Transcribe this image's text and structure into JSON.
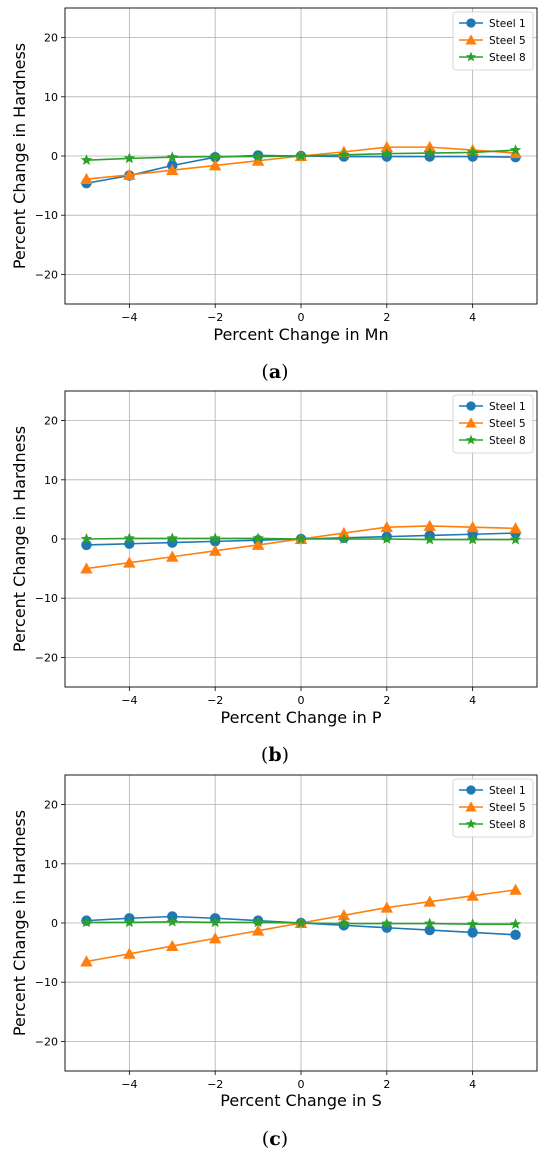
{
  "chart_data": [
    {
      "type": "line",
      "caption": {
        "open": "(",
        "letter": "a",
        "close": ")"
      },
      "xlabel": "Percent Change in Mn",
      "ylabel": "Percent Change in Hardness",
      "xlim": [
        -5.5,
        5.5
      ],
      "ylim": [
        -25,
        25
      ],
      "xticks": [
        -4,
        -2,
        0,
        2,
        4
      ],
      "yticks": [
        -20,
        -10,
        0,
        10,
        20
      ],
      "xtick_labels": [
        "−4",
        "−2",
        "0",
        "2",
        "4"
      ],
      "ytick_labels": [
        "−20",
        "−10",
        "0",
        "10",
        "20"
      ],
      "grid": true,
      "legend_position": "top-right",
      "x": [
        -5,
        -4,
        -3,
        -2,
        -1,
        0,
        1,
        2,
        3,
        4,
        5
      ],
      "series": [
        {
          "name": "Steel 1",
          "color": "#1f77b4",
          "marker": "circle",
          "values": [
            -4.6,
            -3.3,
            -1.6,
            -0.2,
            0.1,
            0.0,
            -0.1,
            -0.1,
            -0.1,
            -0.1,
            -0.2
          ]
        },
        {
          "name": "Steel 5",
          "color": "#ff7f0e",
          "marker": "triangle",
          "values": [
            -3.9,
            -3.2,
            -2.4,
            -1.6,
            -0.8,
            0.0,
            0.7,
            1.5,
            1.5,
            1.0,
            0.5
          ]
        },
        {
          "name": "Steel 8",
          "color": "#2ca02c",
          "marker": "star",
          "values": [
            -0.7,
            -0.4,
            -0.2,
            -0.1,
            -0.1,
            0.0,
            0.2,
            0.4,
            0.5,
            0.6,
            1.0
          ]
        }
      ]
    },
    {
      "type": "line",
      "caption": {
        "open": "(",
        "letter": "b",
        "close": ")"
      },
      "xlabel": "Percent Change in P",
      "ylabel": "Percent Change in Hardness",
      "xlim": [
        -5.5,
        5.5
      ],
      "ylim": [
        -25,
        25
      ],
      "xticks": [
        -4,
        -2,
        0,
        2,
        4
      ],
      "yticks": [
        -20,
        -10,
        0,
        10,
        20
      ],
      "xtick_labels": [
        "−4",
        "−2",
        "0",
        "2",
        "4"
      ],
      "ytick_labels": [
        "−20",
        "−10",
        "0",
        "10",
        "20"
      ],
      "grid": true,
      "legend_position": "top-right",
      "x": [
        -5,
        -4,
        -3,
        -2,
        -1,
        0,
        1,
        2,
        3,
        4,
        5
      ],
      "series": [
        {
          "name": "Steel 1",
          "color": "#1f77b4",
          "marker": "circle",
          "values": [
            -1.0,
            -0.8,
            -0.6,
            -0.4,
            -0.2,
            0.0,
            0.2,
            0.4,
            0.6,
            0.8,
            1.0
          ]
        },
        {
          "name": "Steel 5",
          "color": "#ff7f0e",
          "marker": "triangle",
          "values": [
            -5.0,
            -4.0,
            -3.0,
            -2.0,
            -1.0,
            0.0,
            1.0,
            2.0,
            2.2,
            2.0,
            1.8
          ]
        },
        {
          "name": "Steel 8",
          "color": "#2ca02c",
          "marker": "star",
          "values": [
            0.0,
            0.1,
            0.1,
            0.1,
            0.1,
            0.0,
            0.0,
            0.0,
            -0.1,
            -0.1,
            -0.1
          ]
        }
      ]
    },
    {
      "type": "line",
      "caption": {
        "open": "(",
        "letter": "c",
        "close": ")"
      },
      "xlabel": "Percent Change in S",
      "ylabel": "Percent Change in Hardness",
      "xlim": [
        -5.5,
        5.5
      ],
      "ylim": [
        -25,
        25
      ],
      "xticks": [
        -4,
        -2,
        0,
        2,
        4
      ],
      "yticks": [
        -20,
        -10,
        0,
        10,
        20
      ],
      "xtick_labels": [
        "−4",
        "−2",
        "0",
        "2",
        "4"
      ],
      "ytick_labels": [
        "−20",
        "−10",
        "0",
        "10",
        "20"
      ],
      "grid": true,
      "legend_position": "top-right",
      "x": [
        -5,
        -4,
        -3,
        -2,
        -1,
        0,
        1,
        2,
        3,
        4,
        5
      ],
      "series": [
        {
          "name": "Steel 1",
          "color": "#1f77b4",
          "marker": "circle",
          "values": [
            0.4,
            0.8,
            1.1,
            0.8,
            0.4,
            0.0,
            -0.4,
            -0.8,
            -1.2,
            -1.6,
            -2.0
          ]
        },
        {
          "name": "Steel 5",
          "color": "#ff7f0e",
          "marker": "triangle",
          "values": [
            -6.5,
            -5.2,
            -3.9,
            -2.6,
            -1.3,
            0.0,
            1.3,
            2.6,
            3.6,
            4.6,
            5.6
          ]
        },
        {
          "name": "Steel 8",
          "color": "#2ca02c",
          "marker": "star",
          "values": [
            0.1,
            0.1,
            0.2,
            0.1,
            0.1,
            0.0,
            -0.1,
            -0.1,
            -0.1,
            -0.2,
            -0.2
          ]
        }
      ]
    }
  ]
}
